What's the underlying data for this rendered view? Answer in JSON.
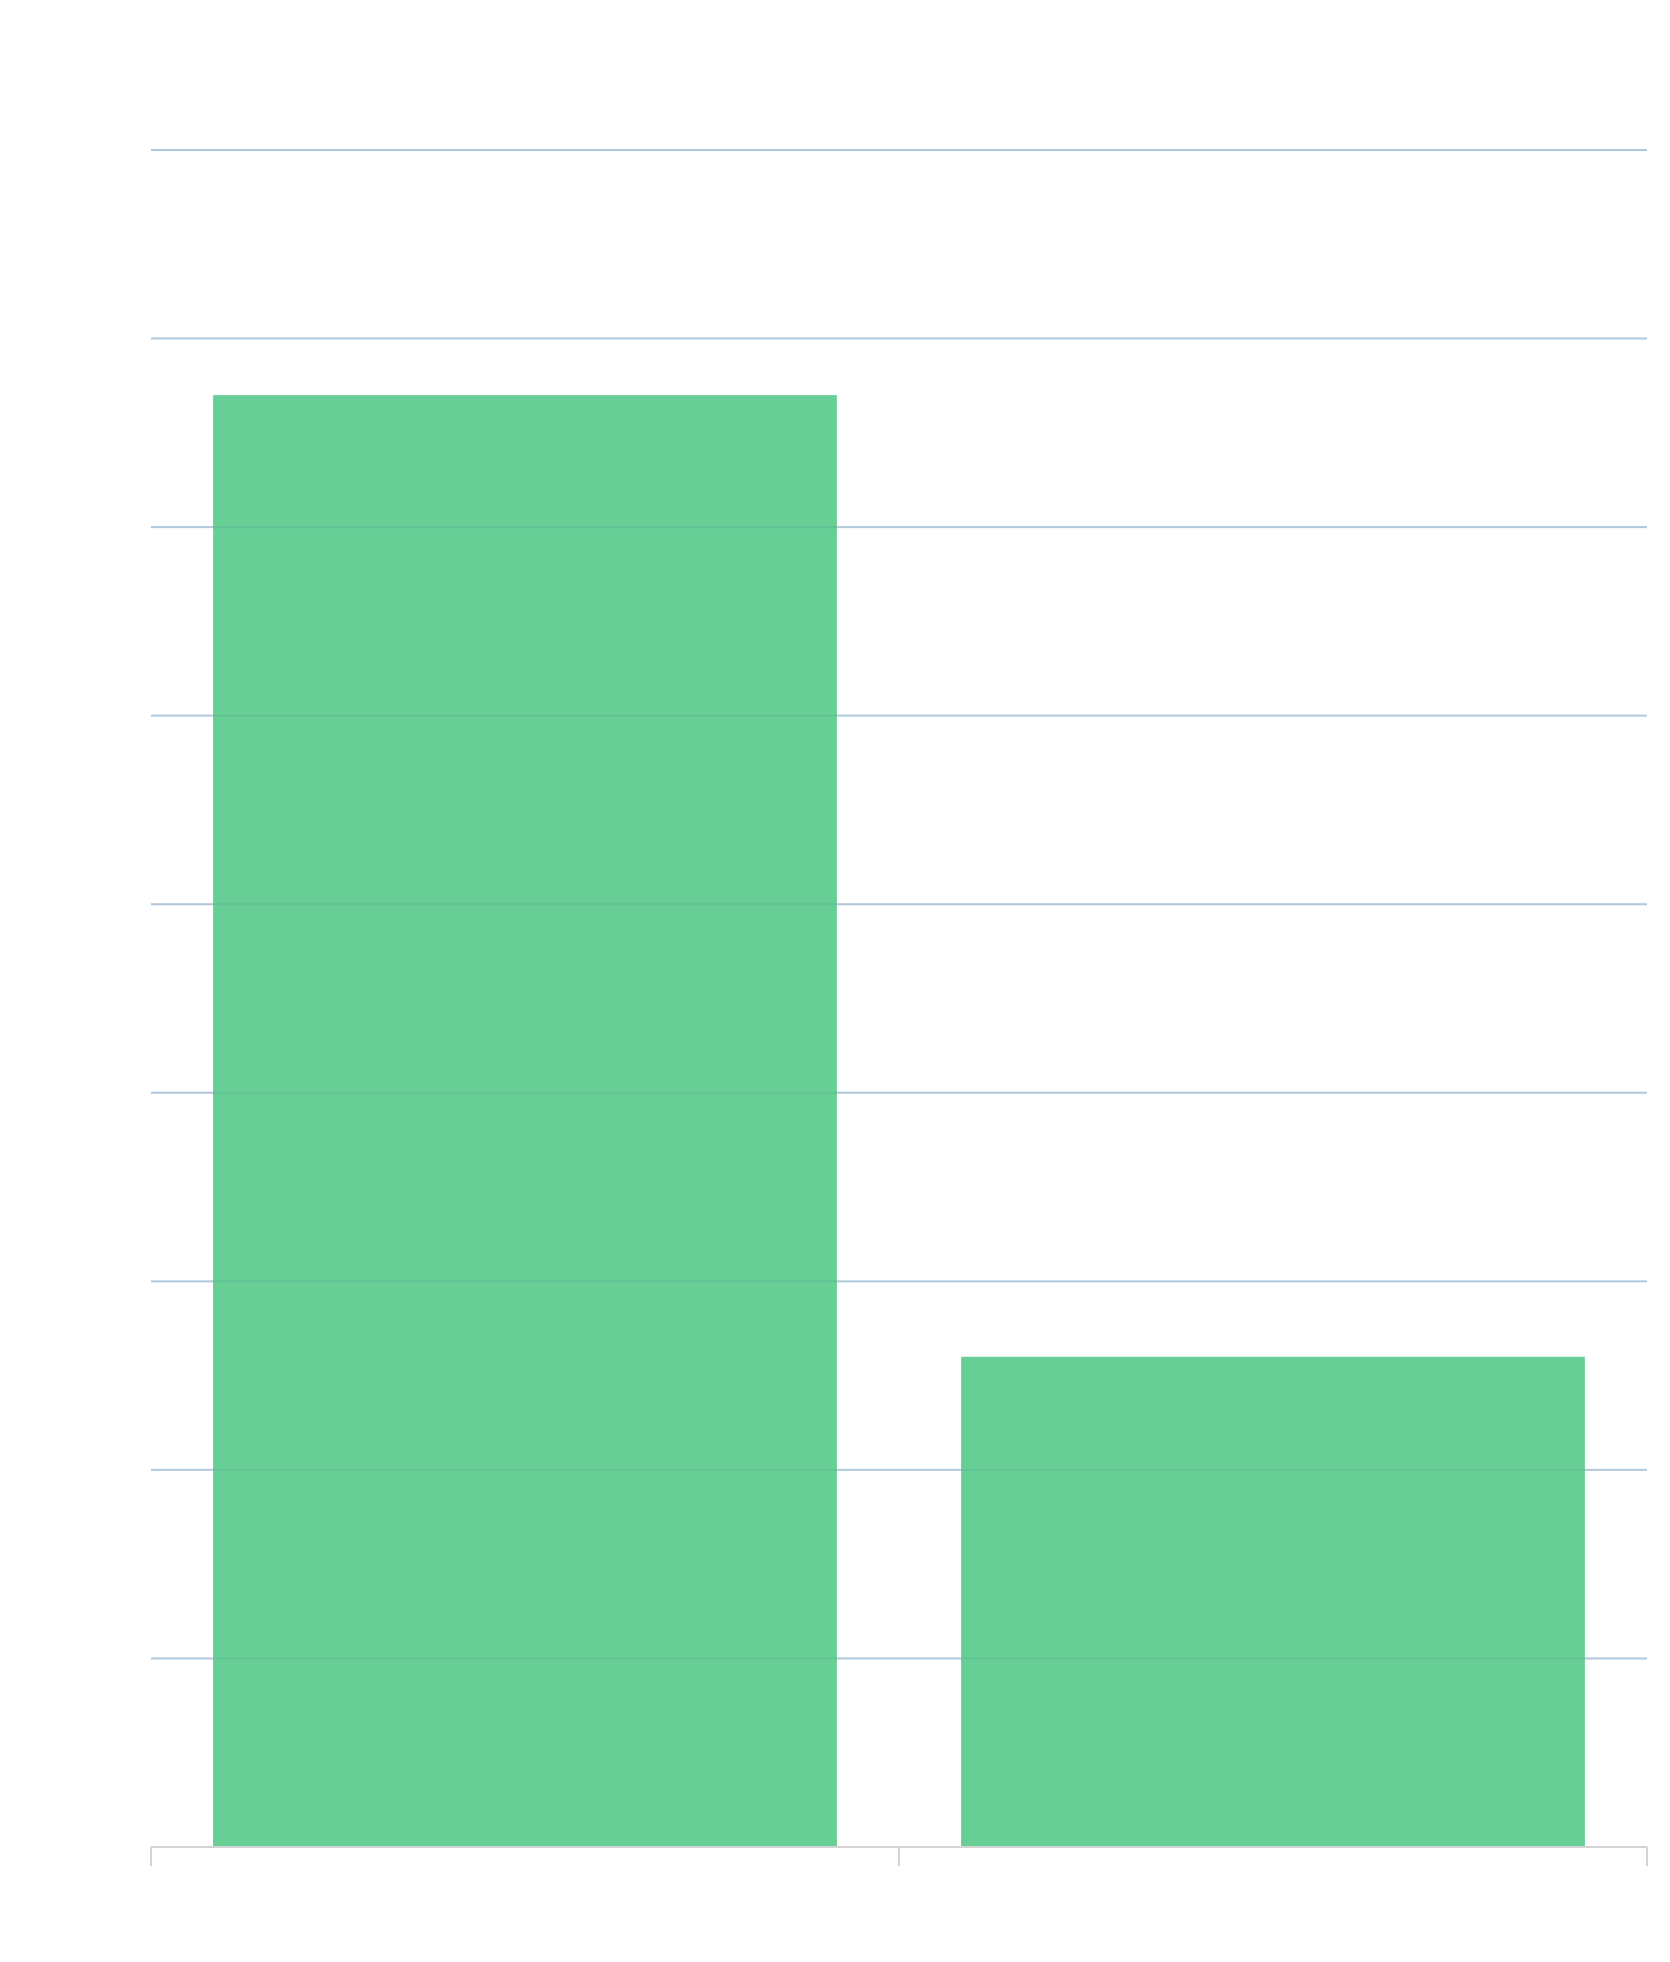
{
  "chart_data": {
    "type": "bar",
    "title": "",
    "xlabel": "",
    "ylabel": "",
    "categories": [
      "",
      ""
    ],
    "values": [
      7.7,
      2.6
    ],
    "ylim": [
      0,
      9
    ],
    "gridlines": [
      1,
      2,
      3,
      4,
      5,
      6,
      7,
      8,
      9
    ],
    "grid": true,
    "legend": "none",
    "colors": {
      "bar": "#67cf96",
      "grid": "#c9d5ee",
      "axis": "#d4d4d4"
    }
  }
}
